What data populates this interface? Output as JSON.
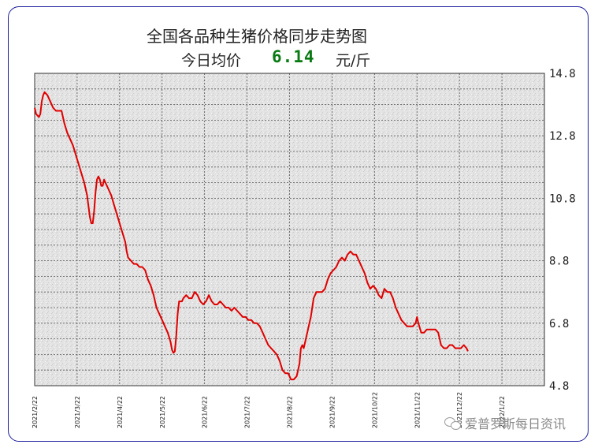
{
  "chart_data": {
    "type": "line",
    "title": "全国各品种生猪价格同步走势图",
    "subtitle_label": "今日均价",
    "current_price": "6.14",
    "price_unit": "元/斤",
    "ylim": [
      4.8,
      14.8
    ],
    "yticks": [
      "14.8",
      "12.8",
      "10.8",
      "8.8",
      "6.8",
      "4.8"
    ],
    "ytick_values": [
      14.8,
      12.8,
      10.8,
      8.8,
      6.8,
      4.8
    ],
    "xticks": [
      "2021/2/22",
      "2021/3/22",
      "2021/4/22",
      "2021/5/22",
      "2021/6/22",
      "2021/7/22",
      "2021/8/22",
      "2021/9/22",
      "2021/10/22",
      "2021/11/22",
      "2021/12/22",
      "2022/1/22"
    ],
    "x_range_days": [
      0,
      360
    ],
    "series": [
      {
        "color": "#e00000",
        "points": [
          [
            0,
            13.7
          ],
          [
            1,
            13.5
          ],
          [
            3,
            13.4
          ],
          [
            4,
            13.5
          ],
          [
            5,
            13.9
          ],
          [
            6,
            14.1
          ],
          [
            7,
            14.2
          ],
          [
            9,
            14.1
          ],
          [
            11,
            13.9
          ],
          [
            13,
            13.7
          ],
          [
            15,
            13.6
          ],
          [
            17,
            13.6
          ],
          [
            19,
            13.6
          ],
          [
            21,
            13.2
          ],
          [
            23,
            12.9
          ],
          [
            25,
            12.7
          ],
          [
            27,
            12.5
          ],
          [
            29,
            12.2
          ],
          [
            31,
            11.9
          ],
          [
            33,
            11.6
          ],
          [
            35,
            11.3
          ],
          [
            37,
            10.9
          ],
          [
            39,
            10.2
          ],
          [
            40,
            10.0
          ],
          [
            41,
            10.0
          ],
          [
            42,
            10.4
          ],
          [
            43,
            11.0
          ],
          [
            44,
            11.4
          ],
          [
            45,
            11.5
          ],
          [
            46,
            11.4
          ],
          [
            47,
            11.2
          ],
          [
            48,
            11.2
          ],
          [
            49,
            11.4
          ],
          [
            50,
            11.3
          ],
          [
            52,
            11.1
          ],
          [
            54,
            10.9
          ],
          [
            56,
            10.6
          ],
          [
            58,
            10.3
          ],
          [
            60,
            10.0
          ],
          [
            62,
            9.7
          ],
          [
            64,
            9.4
          ],
          [
            65,
            9.1
          ],
          [
            66,
            8.9
          ],
          [
            68,
            8.8
          ],
          [
            70,
            8.7
          ],
          [
            72,
            8.7
          ],
          [
            74,
            8.6
          ],
          [
            76,
            8.6
          ],
          [
            78,
            8.5
          ],
          [
            80,
            8.2
          ],
          [
            82,
            8.0
          ],
          [
            84,
            7.7
          ],
          [
            86,
            7.3
          ],
          [
            88,
            7.1
          ],
          [
            90,
            6.9
          ],
          [
            92,
            6.7
          ],
          [
            94,
            6.5
          ],
          [
            96,
            6.2
          ],
          [
            97,
            5.95
          ],
          [
            98,
            5.85
          ],
          [
            99,
            5.9
          ],
          [
            100,
            6.4
          ],
          [
            101,
            7.1
          ],
          [
            102,
            7.5
          ],
          [
            103,
            7.5
          ],
          [
            104,
            7.5
          ],
          [
            105,
            7.6
          ],
          [
            107,
            7.7
          ],
          [
            109,
            7.6
          ],
          [
            111,
            7.6
          ],
          [
            113,
            7.8
          ],
          [
            115,
            7.7
          ],
          [
            117,
            7.5
          ],
          [
            119,
            7.4
          ],
          [
            121,
            7.5
          ],
          [
            123,
            7.7
          ],
          [
            125,
            7.5
          ],
          [
            127,
            7.4
          ],
          [
            129,
            7.4
          ],
          [
            131,
            7.5
          ],
          [
            133,
            7.4
          ],
          [
            135,
            7.3
          ],
          [
            137,
            7.3
          ],
          [
            139,
            7.2
          ],
          [
            141,
            7.3
          ],
          [
            143,
            7.2
          ],
          [
            145,
            7.1
          ],
          [
            147,
            7.0
          ],
          [
            149,
            7.0
          ],
          [
            151,
            6.9
          ],
          [
            153,
            6.9
          ],
          [
            155,
            6.8
          ],
          [
            157,
            6.8
          ],
          [
            159,
            6.7
          ],
          [
            161,
            6.5
          ],
          [
            163,
            6.3
          ],
          [
            165,
            6.1
          ],
          [
            167,
            6.0
          ],
          [
            169,
            5.9
          ],
          [
            171,
            5.8
          ],
          [
            173,
            5.6
          ],
          [
            175,
            5.3
          ],
          [
            177,
            5.2
          ],
          [
            179,
            5.2
          ],
          [
            181,
            5.0
          ],
          [
            183,
            5.0
          ],
          [
            185,
            5.1
          ],
          [
            187,
            5.5
          ],
          [
            188,
            6.0
          ],
          [
            189,
            6.1
          ],
          [
            190,
            6.0
          ],
          [
            191,
            6.2
          ],
          [
            193,
            6.6
          ],
          [
            195,
            7.0
          ],
          [
            197,
            7.6
          ],
          [
            199,
            7.8
          ],
          [
            201,
            7.8
          ],
          [
            203,
            7.8
          ],
          [
            205,
            7.9
          ],
          [
            207,
            8.2
          ],
          [
            209,
            8.4
          ],
          [
            211,
            8.5
          ],
          [
            213,
            8.6
          ],
          [
            215,
            8.8
          ],
          [
            217,
            8.9
          ],
          [
            219,
            8.8
          ],
          [
            221,
            9.0
          ],
          [
            223,
            9.1
          ],
          [
            225,
            9.0
          ],
          [
            227,
            9.0
          ],
          [
            229,
            8.8
          ],
          [
            231,
            8.6
          ],
          [
            233,
            8.4
          ],
          [
            235,
            8.1
          ],
          [
            237,
            7.9
          ],
          [
            239,
            8.0
          ],
          [
            241,
            7.9
          ],
          [
            243,
            7.7
          ],
          [
            245,
            7.6
          ],
          [
            247,
            7.9
          ],
          [
            249,
            7.8
          ],
          [
            251,
            7.8
          ],
          [
            253,
            7.6
          ],
          [
            255,
            7.3
          ],
          [
            257,
            7.1
          ],
          [
            259,
            6.9
          ],
          [
            261,
            6.8
          ],
          [
            263,
            6.7
          ],
          [
            265,
            6.7
          ],
          [
            267,
            6.7
          ],
          [
            269,
            6.8
          ],
          [
            270,
            7.0
          ],
          [
            271,
            6.8
          ],
          [
            273,
            6.5
          ],
          [
            275,
            6.5
          ],
          [
            277,
            6.6
          ],
          [
            279,
            6.6
          ],
          [
            281,
            6.6
          ],
          [
            283,
            6.6
          ],
          [
            285,
            6.5
          ],
          [
            287,
            6.1
          ],
          [
            289,
            6.0
          ],
          [
            291,
            6.0
          ],
          [
            293,
            6.1
          ],
          [
            295,
            6.1
          ],
          [
            297,
            6.0
          ],
          [
            299,
            6.0
          ],
          [
            301,
            6.0
          ],
          [
            303,
            6.1
          ],
          [
            305,
            6.0
          ],
          [
            306,
            5.9
          ]
        ]
      }
    ]
  },
  "watermark": {
    "text": "爱普罗斯每日资讯",
    "icon": "wechat-icon"
  }
}
